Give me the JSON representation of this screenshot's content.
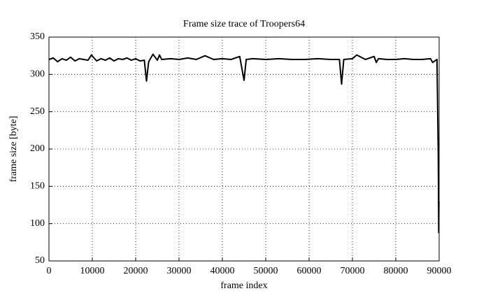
{
  "chart_data": {
    "type": "line",
    "title": "Frame size trace of Troopers64",
    "xlabel": "frame index",
    "ylabel": "frame size [byte]",
    "x": [
      0,
      1000,
      2000,
      3000,
      4000,
      5000,
      6000,
      7000,
      8000,
      9000,
      9800,
      11000,
      12000,
      13000,
      14000,
      15000,
      16000,
      17000,
      18000,
      19000,
      20000,
      21000,
      22000,
      22500,
      23000,
      24000,
      25000,
      25500,
      26000,
      28000,
      30000,
      32000,
      34000,
      36000,
      38000,
      40000,
      42000,
      44000,
      45000,
      45500,
      47000,
      50000,
      53000,
      56000,
      59000,
      62000,
      65000,
      67000,
      67500,
      68000,
      70000,
      71000,
      73000,
      75000,
      75500,
      76000,
      78000,
      80000,
      82000,
      84000,
      86000,
      88000,
      88500,
      89500,
      89800,
      89900,
      89950
    ],
    "values": [
      320,
      322,
      317,
      321,
      319,
      323,
      318,
      321,
      320,
      319,
      326,
      318,
      321,
      319,
      322,
      318,
      321,
      320,
      322,
      319,
      321,
      318,
      319,
      291,
      317,
      327,
      319,
      326,
      320,
      321,
      320,
      322,
      320,
      325,
      320,
      321,
      320,
      324,
      292,
      320,
      321,
      320,
      321,
      320,
      320,
      321,
      320,
      320,
      287,
      320,
      321,
      326,
      320,
      324,
      316,
      321,
      320,
      320,
      321,
      320,
      320,
      321,
      316,
      320,
      190,
      88,
      130
    ],
    "color": "#000000",
    "xlim": [
      0,
      90000
    ],
    "xticks": [
      0,
      10000,
      20000,
      30000,
      40000,
      50000,
      60000,
      70000,
      80000,
      90000
    ],
    "ylim": [
      50,
      350
    ],
    "yticks": [
      50,
      100,
      150,
      200,
      250,
      300,
      350
    ],
    "grid": true
  }
}
